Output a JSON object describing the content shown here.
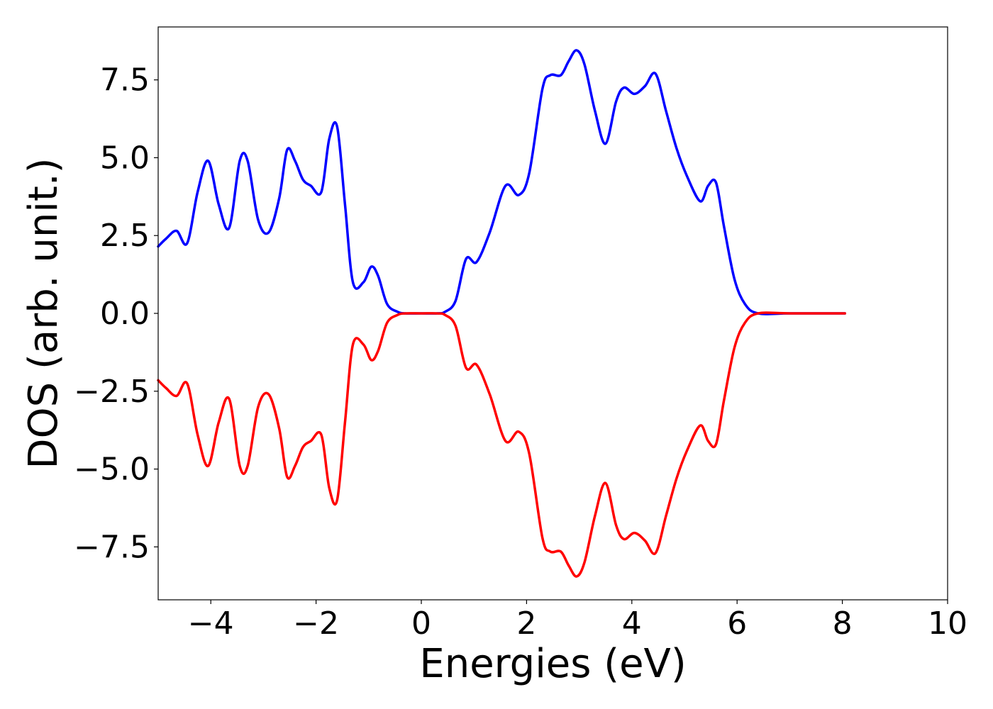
{
  "chart_data": {
    "type": "line",
    "title": "",
    "xlabel": "Energies (eV)",
    "ylabel": "DOS (arb. unit.)",
    "xlim": [
      -5,
      10
    ],
    "ylim": [
      -9.2,
      9.2
    ],
    "grid": false,
    "legend": "none",
    "x_ticks": [
      -4,
      -2,
      0,
      2,
      4,
      6,
      8,
      10
    ],
    "x_tick_labels": [
      "−4",
      "−2",
      "0",
      "2",
      "4",
      "6",
      "8",
      "10"
    ],
    "y_ticks": [
      7.5,
      5.0,
      2.5,
      0.0,
      -2.5,
      -5.0,
      -7.5
    ],
    "y_tick_labels": [
      "7.5",
      "5.0",
      "2.5",
      "0.0",
      "−2.5",
      "−5.0",
      "−7.5"
    ],
    "series": [
      {
        "color": "#0000ff",
        "x": [
          -5.0,
          -4.85,
          -4.65,
          -4.45,
          -4.25,
          -4.05,
          -3.85,
          -3.65,
          -3.45,
          -3.3,
          -3.1,
          -2.9,
          -2.7,
          -2.55,
          -2.4,
          -2.25,
          -2.1,
          -1.9,
          -1.75,
          -1.6,
          -1.45,
          -1.3,
          -1.1,
          -0.95,
          -0.82,
          -0.65,
          -0.45,
          -0.3,
          0.0,
          0.3,
          0.45,
          0.65,
          0.85,
          1.05,
          1.3,
          1.6,
          1.85,
          2.05,
          2.3,
          2.45,
          2.65,
          2.8,
          2.95,
          3.1,
          3.3,
          3.5,
          3.7,
          3.85,
          4.05,
          4.25,
          4.45,
          4.65,
          4.85,
          5.05,
          5.3,
          5.45,
          5.6,
          5.75,
          5.95,
          6.15,
          6.4,
          7.0,
          8.05
        ],
        "y": [
          2.15,
          2.4,
          2.65,
          2.25,
          3.9,
          4.9,
          3.5,
          2.75,
          4.9,
          4.9,
          3.0,
          2.6,
          3.7,
          5.25,
          4.9,
          4.3,
          4.1,
          3.9,
          5.6,
          6.0,
          3.5,
          1.0,
          1.0,
          1.5,
          1.2,
          0.3,
          0.05,
          0.0,
          0.0,
          0.0,
          0.05,
          0.4,
          1.75,
          1.65,
          2.6,
          4.1,
          3.8,
          4.5,
          7.2,
          7.65,
          7.65,
          8.1,
          8.45,
          8.0,
          6.5,
          5.45,
          6.8,
          7.25,
          7.05,
          7.3,
          7.7,
          6.5,
          5.3,
          4.4,
          3.6,
          4.1,
          4.2,
          2.8,
          1.1,
          0.3,
          0.0,
          0.0,
          0.0
        ]
      },
      {
        "color": "#ff0000",
        "x": [
          -5.0,
          -4.85,
          -4.65,
          -4.45,
          -4.25,
          -4.05,
          -3.85,
          -3.65,
          -3.45,
          -3.3,
          -3.1,
          -2.9,
          -2.7,
          -2.55,
          -2.4,
          -2.25,
          -2.1,
          -1.9,
          -1.75,
          -1.6,
          -1.45,
          -1.3,
          -1.1,
          -0.95,
          -0.82,
          -0.65,
          -0.45,
          -0.3,
          0.0,
          0.3,
          0.45,
          0.65,
          0.85,
          1.05,
          1.3,
          1.6,
          1.85,
          2.05,
          2.3,
          2.45,
          2.65,
          2.8,
          2.95,
          3.1,
          3.3,
          3.5,
          3.7,
          3.85,
          4.05,
          4.25,
          4.45,
          4.65,
          4.85,
          5.05,
          5.3,
          5.45,
          5.6,
          5.75,
          5.95,
          6.15,
          6.4,
          7.0,
          8.05
        ],
        "y": [
          -2.15,
          -2.4,
          -2.65,
          -2.25,
          -3.9,
          -4.9,
          -3.5,
          -2.75,
          -4.9,
          -4.9,
          -3.0,
          -2.6,
          -3.7,
          -5.25,
          -4.9,
          -4.3,
          -4.1,
          -3.9,
          -5.6,
          -6.0,
          -3.5,
          -1.0,
          -1.0,
          -1.5,
          -1.2,
          -0.3,
          -0.05,
          0.0,
          0.0,
          0.0,
          -0.05,
          -0.4,
          -1.75,
          -1.65,
          -2.6,
          -4.1,
          -3.8,
          -4.5,
          -7.2,
          -7.65,
          -7.65,
          -8.1,
          -8.45,
          -8.0,
          -6.5,
          -5.45,
          -6.8,
          -7.25,
          -7.05,
          -7.3,
          -7.7,
          -6.5,
          -5.3,
          -4.4,
          -3.6,
          -4.1,
          -4.2,
          -2.8,
          -1.1,
          -0.3,
          0.0,
          0.0,
          0.0
        ]
      }
    ]
  }
}
